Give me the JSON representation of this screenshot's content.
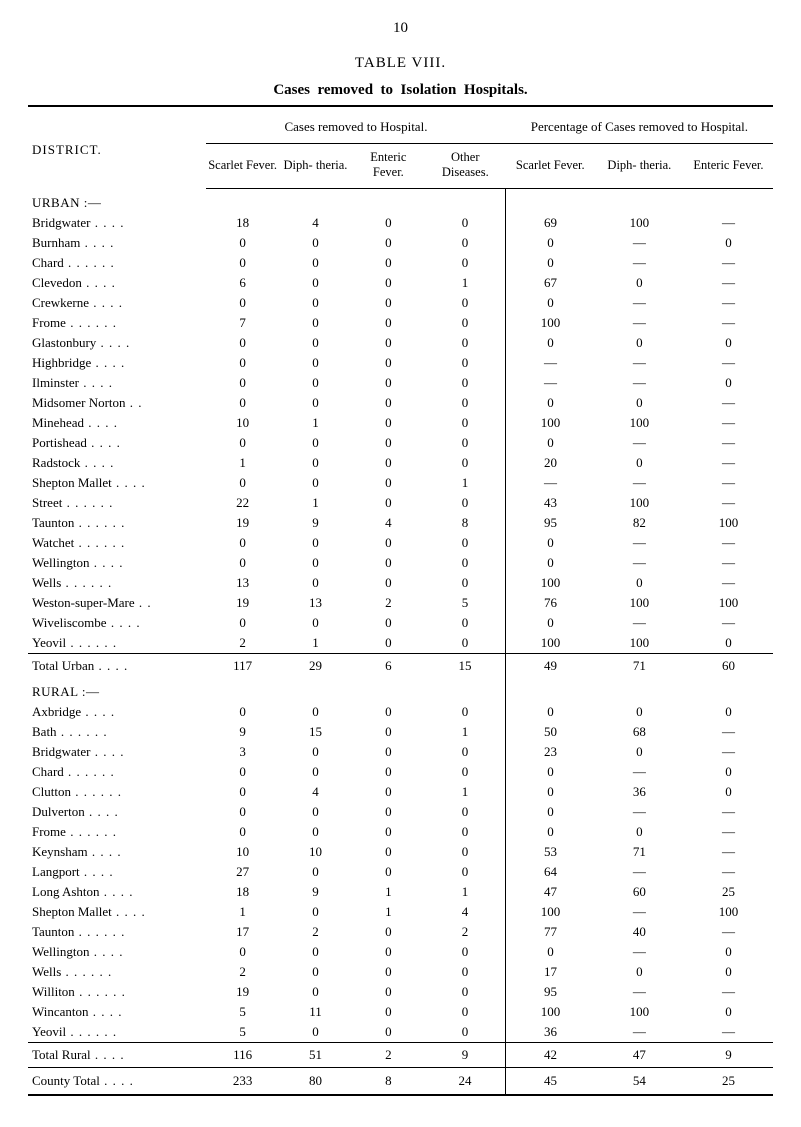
{
  "page_number": "10",
  "table_label": "TABLE  VIII.",
  "subtitle_bold_parts": [
    "Cases",
    "removed",
    "to",
    "Isolation",
    "Hospitals."
  ],
  "header": {
    "district": "DISTRICT.",
    "group1": "Cases removed to Hospital.",
    "group2": "Percentage of Cases removed to Hospital.",
    "cols_left": [
      "Scarlet Fever.",
      "Diph- theria.",
      "Enteric Fever.",
      "Other Diseases."
    ],
    "cols_right": [
      "Scarlet Fever.",
      "Diph- theria.",
      "Enteric Fever."
    ]
  },
  "sections": [
    {
      "title": "URBAN :—",
      "rows": [
        {
          "label": "Bridgwater",
          "d": "dots2",
          "v": [
            "18",
            "4",
            "0",
            "0",
            "69",
            "100",
            "—"
          ]
        },
        {
          "label": "Burnham",
          "d": "dots2",
          "v": [
            "0",
            "0",
            "0",
            "0",
            "0",
            "—",
            "0"
          ]
        },
        {
          "label": "Chard",
          "d": "dots3",
          "v": [
            "0",
            "0",
            "0",
            "0",
            "0",
            "—",
            "—"
          ]
        },
        {
          "label": "Clevedon",
          "d": "dots2",
          "v": [
            "6",
            "0",
            "0",
            "1",
            "67",
            "0",
            "—"
          ]
        },
        {
          "label": "Crewkerne",
          "d": "dots2",
          "v": [
            "0",
            "0",
            "0",
            "0",
            "0",
            "—",
            "—"
          ]
        },
        {
          "label": "Frome",
          "d": "dots3",
          "v": [
            "7",
            "0",
            "0",
            "0",
            "100",
            "—",
            "—"
          ]
        },
        {
          "label": "Glastonbury",
          "d": "dots2",
          "v": [
            "0",
            "0",
            "0",
            "0",
            "0",
            "0",
            "0"
          ]
        },
        {
          "label": "Highbridge",
          "d": "dots2",
          "v": [
            "0",
            "0",
            "0",
            "0",
            "—",
            "—",
            "—"
          ]
        },
        {
          "label": "Ilminster",
          "d": "dots2",
          "v": [
            "0",
            "0",
            "0",
            "0",
            "—",
            "—",
            "0"
          ]
        },
        {
          "label": "Midsomer Norton",
          "d": "dots",
          "v": [
            "0",
            "0",
            "0",
            "0",
            "0",
            "0",
            "—"
          ]
        },
        {
          "label": "Minehead",
          "d": "dots2",
          "v": [
            "10",
            "1",
            "0",
            "0",
            "100",
            "100",
            "—"
          ]
        },
        {
          "label": "Portishead",
          "d": "dots2",
          "v": [
            "0",
            "0",
            "0",
            "0",
            "0",
            "—",
            "—"
          ]
        },
        {
          "label": "Radstock",
          "d": "dots2",
          "v": [
            "1",
            "0",
            "0",
            "0",
            "20",
            "0",
            "—"
          ]
        },
        {
          "label": "Shepton Mallet",
          "d": "dots2",
          "v": [
            "0",
            "0",
            "0",
            "1",
            "—",
            "—",
            "—"
          ]
        },
        {
          "label": "Street",
          "d": "dots3",
          "v": [
            "22",
            "1",
            "0",
            "0",
            "43",
            "100",
            "—"
          ]
        },
        {
          "label": "Taunton",
          "d": "dots3",
          "v": [
            "19",
            "9",
            "4",
            "8",
            "95",
            "82",
            "100"
          ]
        },
        {
          "label": "Watchet",
          "d": "dots3",
          "v": [
            "0",
            "0",
            "0",
            "0",
            "0",
            "—",
            "—"
          ]
        },
        {
          "label": "Wellington",
          "d": "dots2",
          "v": [
            "0",
            "0",
            "0",
            "0",
            "0",
            "—",
            "—"
          ]
        },
        {
          "label": "Wells",
          "d": "dots3",
          "v": [
            "13",
            "0",
            "0",
            "0",
            "100",
            "0",
            "—"
          ]
        },
        {
          "label": "Weston-super-Mare",
          "d": "dots",
          "v": [
            "19",
            "13",
            "2",
            "5",
            "76",
            "100",
            "100"
          ]
        },
        {
          "label": "Wiveliscombe",
          "d": "dots2",
          "v": [
            "0",
            "0",
            "0",
            "0",
            "0",
            "—",
            "—"
          ]
        },
        {
          "label": "Yeovil",
          "d": "dots3",
          "v": [
            "2",
            "1",
            "0",
            "0",
            "100",
            "100",
            "0"
          ]
        }
      ],
      "summary": {
        "label": "Total Urban",
        "d": "dots2",
        "v": [
          "117",
          "29",
          "6",
          "15",
          "49",
          "71",
          "60"
        ]
      }
    },
    {
      "title": "RURAL :—",
      "rows": [
        {
          "label": "Axbridge",
          "d": "dots2",
          "v": [
            "0",
            "0",
            "0",
            "0",
            "0",
            "0",
            "0"
          ]
        },
        {
          "label": "Bath",
          "d": "dots3",
          "v": [
            "9",
            "15",
            "0",
            "1",
            "50",
            "68",
            "—"
          ]
        },
        {
          "label": "Bridgwater",
          "d": "dots2",
          "v": [
            "3",
            "0",
            "0",
            "0",
            "23",
            "0",
            "—"
          ]
        },
        {
          "label": "Chard",
          "d": "dots3",
          "v": [
            "0",
            "0",
            "0",
            "0",
            "0",
            "—",
            "0"
          ]
        },
        {
          "label": "Clutton",
          "d": "dots3",
          "v": [
            "0",
            "4",
            "0",
            "1",
            "0",
            "36",
            "0"
          ]
        },
        {
          "label": "Dulverton",
          "d": "dots2",
          "v": [
            "0",
            "0",
            "0",
            "0",
            "0",
            "—",
            "—"
          ]
        },
        {
          "label": "Frome",
          "d": "dots3",
          "v": [
            "0",
            "0",
            "0",
            "0",
            "0",
            "0",
            "—"
          ]
        },
        {
          "label": "Keynsham",
          "d": "dots2",
          "v": [
            "10",
            "10",
            "0",
            "0",
            "53",
            "71",
            "—"
          ]
        },
        {
          "label": "Langport",
          "d": "dots2",
          "v": [
            "27",
            "0",
            "0",
            "0",
            "64",
            "—",
            "—"
          ]
        },
        {
          "label": "Long Ashton",
          "d": "dots2",
          "v": [
            "18",
            "9",
            "1",
            "1",
            "47",
            "60",
            "25"
          ]
        },
        {
          "label": "Shepton Mallet",
          "d": "dots2",
          "v": [
            "1",
            "0",
            "1",
            "4",
            "100",
            "—",
            "100"
          ]
        },
        {
          "label": "Taunton",
          "d": "dots3",
          "v": [
            "17",
            "2",
            "0",
            "2",
            "77",
            "40",
            "—"
          ]
        },
        {
          "label": "Wellington",
          "d": "dots2",
          "v": [
            "0",
            "0",
            "0",
            "0",
            "0",
            "—",
            "0"
          ]
        },
        {
          "label": "Wells",
          "d": "dots3",
          "v": [
            "2",
            "0",
            "0",
            "0",
            "17",
            "0",
            "0"
          ]
        },
        {
          "label": "Williton",
          "d": "dots3",
          "v": [
            "19",
            "0",
            "0",
            "0",
            "95",
            "—",
            "—"
          ]
        },
        {
          "label": "Wincanton",
          "d": "dots2",
          "v": [
            "5",
            "11",
            "0",
            "0",
            "100",
            "100",
            "0"
          ]
        },
        {
          "label": "Yeovil",
          "d": "dots3",
          "v": [
            "5",
            "0",
            "0",
            "0",
            "36",
            "—",
            "—"
          ]
        }
      ],
      "summary": {
        "label": "Total Rural",
        "d": "dots2",
        "v": [
          "116",
          "51",
          "2",
          "9",
          "42",
          "47",
          "9"
        ]
      }
    }
  ],
  "grand_total": {
    "label": "County Total",
    "d": "dots2",
    "v": [
      "233",
      "80",
      "8",
      "24",
      "45",
      "54",
      "25"
    ]
  },
  "styling": {
    "background_color": "#ffffff",
    "text_color": "#000000",
    "font_family": "Times New Roman, Georgia, serif",
    "body_fontsize": 14,
    "table_fontsize": 13,
    "heavy_rule_weight": 2.5,
    "thin_rule_weight": 1
  }
}
